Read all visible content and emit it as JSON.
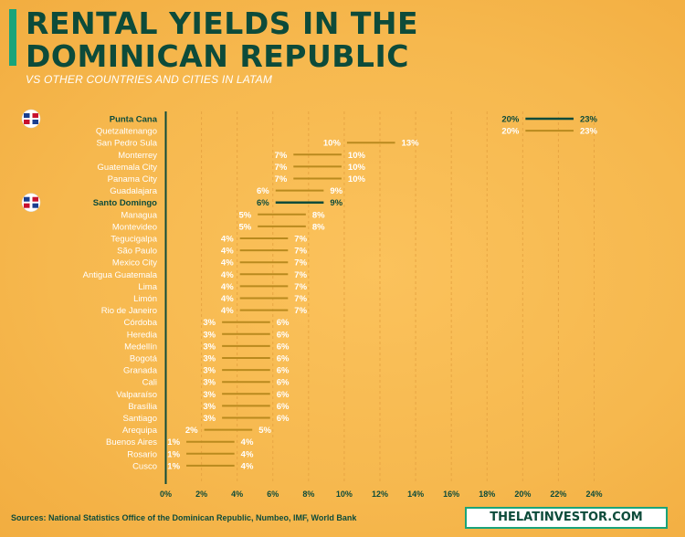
{
  "header": {
    "title_line1": "RENTAL YIELDS IN THE",
    "title_line2": "DOMINICAN REPUBLIC",
    "subtitle": "VS OTHER COUNTRIES AND CITIES IN LATAM"
  },
  "footer": {
    "sources": "Sources: National Statistics Office of the Dominican Republic, Numbeo, IMF, World Bank",
    "brand": "THELATINVESTOR.COM"
  },
  "colors": {
    "background": "#f6b84e",
    "dark_green": "#0d4b3a",
    "accent_green": "#1aa47a",
    "gold": "#b98a1e",
    "grid": "#e8a542",
    "text_highlight": "#0d4b3a",
    "text_normal": "#ffffff"
  },
  "chart_data": {
    "type": "range-bar",
    "title": "RENTAL YIELDS IN THE DOMINICAN REPUBLIC",
    "subtitle": "VS OTHER COUNTRIES AND CITIES IN LATAM",
    "xlim": [
      0,
      24
    ],
    "x_ticks": [
      "0%",
      "2%",
      "4%",
      "6%",
      "8%",
      "10%",
      "12%",
      "14%",
      "16%",
      "18%",
      "20%",
      "22%",
      "24%"
    ],
    "grid": "vertical dashed",
    "rows": [
      {
        "label": "Punta Cana",
        "min": 20,
        "max": 23,
        "min_label": "20%",
        "max_label": "23%",
        "highlight": true
      },
      {
        "label": "Quetzaltenango",
        "min": 20,
        "max": 23,
        "min_label": "20%",
        "max_label": "23%",
        "highlight": false
      },
      {
        "label": "San Pedro Sula",
        "min": 10,
        "max": 13,
        "min_label": "10%",
        "max_label": "13%",
        "highlight": false
      },
      {
        "label": "Monterrey",
        "min": 7,
        "max": 10,
        "min_label": "7%",
        "max_label": "10%",
        "highlight": false
      },
      {
        "label": "Guatemala City",
        "min": 7,
        "max": 10,
        "min_label": "7%",
        "max_label": "10%",
        "highlight": false
      },
      {
        "label": "Panama City",
        "min": 7,
        "max": 10,
        "min_label": "7%",
        "max_label": "10%",
        "highlight": false
      },
      {
        "label": "Guadalajara",
        "min": 6,
        "max": 9,
        "min_label": "6%",
        "max_label": "9%",
        "highlight": false
      },
      {
        "label": "Santo Domingo",
        "min": 6,
        "max": 9,
        "min_label": "6%",
        "max_label": "9%",
        "highlight": true
      },
      {
        "label": "Managua",
        "min": 5,
        "max": 8,
        "min_label": "5%",
        "max_label": "8%",
        "highlight": false
      },
      {
        "label": "Montevideo",
        "min": 5,
        "max": 8,
        "min_label": "5%",
        "max_label": "8%",
        "highlight": false
      },
      {
        "label": "Tegucigalpa",
        "min": 4,
        "max": 7,
        "min_label": "4%",
        "max_label": "7%",
        "highlight": false
      },
      {
        "label": "São Paulo",
        "min": 4,
        "max": 7,
        "min_label": "4%",
        "max_label": "7%",
        "highlight": false
      },
      {
        "label": "Mexico City",
        "min": 4,
        "max": 7,
        "min_label": "4%",
        "max_label": "7%",
        "highlight": false
      },
      {
        "label": "Antigua Guatemala",
        "min": 4,
        "max": 7,
        "min_label": "4%",
        "max_label": "7%",
        "highlight": false
      },
      {
        "label": "Lima",
        "min": 4,
        "max": 7,
        "min_label": "4%",
        "max_label": "7%",
        "highlight": false
      },
      {
        "label": "Limón",
        "min": 4,
        "max": 7,
        "min_label": "4%",
        "max_label": "7%",
        "highlight": false
      },
      {
        "label": "Rio de Janeiro",
        "min": 4,
        "max": 7,
        "min_label": "4%",
        "max_label": "7%",
        "highlight": false
      },
      {
        "label": "Córdoba",
        "min": 3,
        "max": 6,
        "min_label": "3%",
        "max_label": "6%",
        "highlight": false
      },
      {
        "label": "Heredia",
        "min": 3,
        "max": 6,
        "min_label": "3%",
        "max_label": "6%",
        "highlight": false
      },
      {
        "label": "Medellín",
        "min": 3,
        "max": 6,
        "min_label": "3%",
        "max_label": "6%",
        "highlight": false
      },
      {
        "label": "Bogotá",
        "min": 3,
        "max": 6,
        "min_label": "3%",
        "max_label": "6%",
        "highlight": false
      },
      {
        "label": "Granada",
        "min": 3,
        "max": 6,
        "min_label": "3%",
        "max_label": "6%",
        "highlight": false
      },
      {
        "label": "Cali",
        "min": 3,
        "max": 6,
        "min_label": "3%",
        "max_label": "6%",
        "highlight": false
      },
      {
        "label": "Valparaíso",
        "min": 3,
        "max": 6,
        "min_label": "3%",
        "max_label": "6%",
        "highlight": false
      },
      {
        "label": "Brasília",
        "min": 3,
        "max": 6,
        "min_label": "3%",
        "max_label": "6%",
        "highlight": false
      },
      {
        "label": "Santiago",
        "min": 3,
        "max": 6,
        "min_label": "3%",
        "max_label": "6%",
        "highlight": false
      },
      {
        "label": "Arequipa",
        "min": 2,
        "max": 5,
        "min_label": "2%",
        "max_label": "5%",
        "highlight": false
      },
      {
        "label": "Buenos Aires",
        "min": 1,
        "max": 4,
        "min_label": "1%",
        "max_label": "4%",
        "highlight": false
      },
      {
        "label": "Rosario",
        "min": 1,
        "max": 4,
        "min_label": "1%",
        "max_label": "4%",
        "highlight": false
      },
      {
        "label": "Cusco",
        "min": 1,
        "max": 4,
        "min_label": "1%",
        "max_label": "4%",
        "highlight": false
      }
    ]
  }
}
